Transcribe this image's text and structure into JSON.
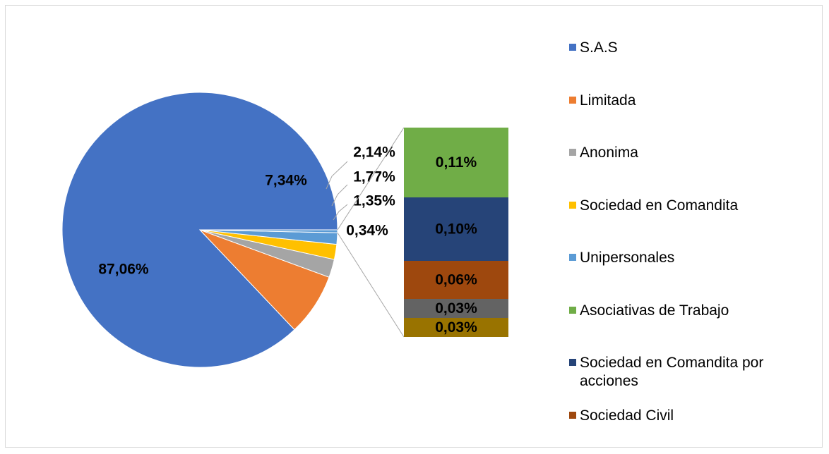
{
  "chart_data": {
    "type": "pie",
    "categories": [
      "S.A.S",
      "Limitada",
      "Anonima",
      "Sociedad en Comandita",
      "Unipersonales",
      null
    ],
    "values": [
      87.06,
      7.34,
      2.14,
      1.77,
      1.35,
      0.34
    ],
    "value_labels": [
      "87,06%",
      "7,34%",
      "2,14%",
      "1,77%",
      "1,35%",
      "0,34%"
    ],
    "colors": [
      "#4472c4",
      "#ed7d31",
      "#a5a5a5",
      "#ffc000",
      "#5b9bd5",
      "#5b9bd5"
    ],
    "bar": {
      "categories": [
        "Asociativas de Trabajo",
        "Sociedad en Comandita por acciones",
        "Sociedad Civil",
        null,
        null
      ],
      "values": [
        0.11,
        0.1,
        0.06,
        0.03,
        0.03
      ],
      "value_labels": [
        "0,11%",
        "0,10%",
        "0,06%",
        "0,03%",
        "0,03%"
      ],
      "colors": [
        "#70ad47",
        "#264478",
        "#9e480e",
        "#636363",
        "#997300"
      ]
    },
    "legend": "right"
  }
}
